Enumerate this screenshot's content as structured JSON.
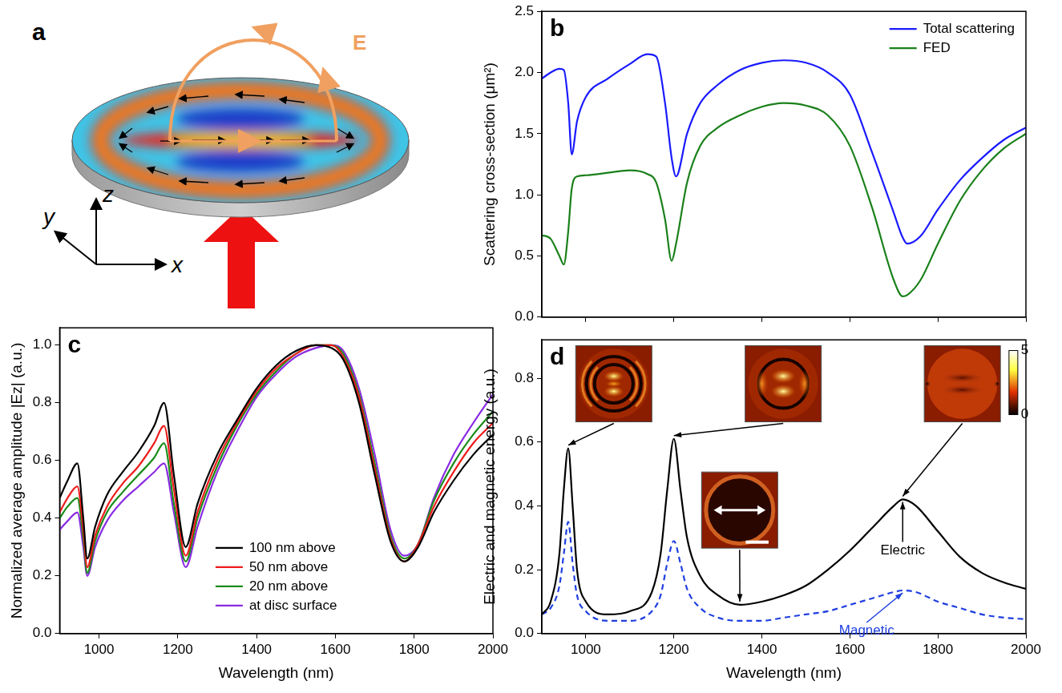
{
  "panel_a": {
    "panel": "a",
    "field_label": "E",
    "axis_labels": [
      "x",
      "y",
      "z"
    ]
  },
  "chart_data": [
    {
      "type": "line",
      "panel": "b",
      "y_label": "Scattering cross-section (μm²)",
      "x": [
        900,
        920,
        940,
        950,
        960,
        968,
        980,
        1000,
        1050,
        1100,
        1140,
        1160,
        1180,
        1195,
        1205,
        1230,
        1260,
        1300,
        1350,
        1400,
        1450,
        1500,
        1550,
        1600,
        1650,
        1700,
        1720,
        1730,
        1760,
        1800,
        1850,
        1900,
        1950,
        2000
      ],
      "series": [
        {
          "name": "Total scattering",
          "color": "#1a1aff",
          "line_style": "solid",
          "values": [
            1.95,
            2.0,
            2.03,
            2.02,
            1.75,
            1.33,
            1.6,
            1.8,
            1.95,
            2.07,
            2.15,
            2.13,
            1.75,
            1.3,
            1.15,
            1.5,
            1.75,
            1.9,
            2.02,
            2.08,
            2.1,
            2.08,
            2.0,
            1.82,
            1.35,
            0.85,
            0.65,
            0.6,
            0.66,
            0.88,
            1.12,
            1.3,
            1.45,
            1.55
          ]
        },
        {
          "name": "FED",
          "color": "#1a801a",
          "line_style": "solid",
          "values": [
            0.67,
            0.64,
            0.5,
            0.43,
            0.7,
            1.05,
            1.15,
            1.16,
            1.18,
            1.2,
            1.17,
            1.1,
            0.8,
            0.46,
            0.6,
            1.1,
            1.4,
            1.55,
            1.65,
            1.72,
            1.75,
            1.73,
            1.65,
            1.4,
            0.9,
            0.3,
            0.17,
            0.18,
            0.3,
            0.6,
            0.95,
            1.2,
            1.38,
            1.5
          ]
        }
      ],
      "xlim": [
        900,
        2000
      ],
      "xticks": [
        1000,
        1200,
        1400,
        1600,
        1800,
        2000
      ],
      "ylim": [
        0,
        2.5
      ],
      "yticks": [
        {
          "value": 0,
          "label": "0.0"
        },
        0.5,
        {
          "value": 1,
          "label": "1.0"
        },
        1.5,
        {
          "value": 2,
          "label": "2.0"
        },
        2.5
      ],
      "grid": false,
      "legend": "upper right",
      "tick_labels": "y"
    },
    {
      "type": "line",
      "panel": "c",
      "x_label": "Wavelength (nm)",
      "y_label": "Normalized average amplitude |Ez| (a.u.)",
      "x": [
        900,
        920,
        945,
        960,
        970,
        990,
        1020,
        1060,
        1100,
        1140,
        1165,
        1190,
        1220,
        1250,
        1300,
        1350,
        1400,
        1450,
        1500,
        1550,
        1590,
        1620,
        1660,
        1700,
        1740,
        1775,
        1810,
        1850,
        1900,
        1950,
        2000
      ],
      "series": [
        {
          "name": "100 nm above",
          "color": "#000000",
          "line_style": "solid",
          "values": [
            0.47,
            0.53,
            0.59,
            0.4,
            0.26,
            0.37,
            0.48,
            0.56,
            0.63,
            0.72,
            0.8,
            0.55,
            0.3,
            0.45,
            0.62,
            0.74,
            0.85,
            0.93,
            0.98,
            1.0,
            0.99,
            0.95,
            0.8,
            0.55,
            0.32,
            0.25,
            0.3,
            0.42,
            0.53,
            0.62,
            0.69
          ]
        },
        {
          "name": "50 nm above",
          "color": "#ee1c1c",
          "line_style": "solid",
          "values": [
            0.42,
            0.47,
            0.51,
            0.36,
            0.23,
            0.34,
            0.44,
            0.52,
            0.58,
            0.66,
            0.72,
            0.5,
            0.27,
            0.42,
            0.6,
            0.73,
            0.84,
            0.92,
            0.97,
            1.0,
            1.0,
            0.96,
            0.82,
            0.57,
            0.33,
            0.25,
            0.31,
            0.44,
            0.56,
            0.66,
            0.73
          ]
        },
        {
          "name": "20 nm above",
          "color": "#1a8c1a",
          "line_style": "solid",
          "values": [
            0.4,
            0.44,
            0.47,
            0.33,
            0.21,
            0.32,
            0.42,
            0.49,
            0.55,
            0.61,
            0.66,
            0.45,
            0.25,
            0.4,
            0.58,
            0.72,
            0.83,
            0.91,
            0.97,
            1.0,
            1.0,
            0.97,
            0.83,
            0.59,
            0.34,
            0.26,
            0.31,
            0.46,
            0.59,
            0.69,
            0.77
          ]
        },
        {
          "name": "at disc surface",
          "color": "#8a2be2",
          "line_style": "solid",
          "values": [
            0.36,
            0.39,
            0.42,
            0.3,
            0.2,
            0.3,
            0.39,
            0.46,
            0.51,
            0.56,
            0.59,
            0.42,
            0.23,
            0.37,
            0.56,
            0.7,
            0.82,
            0.9,
            0.96,
            0.99,
            1.0,
            0.98,
            0.85,
            0.62,
            0.36,
            0.27,
            0.31,
            0.47,
            0.62,
            0.73,
            0.83
          ]
        }
      ],
      "xlim": [
        900,
        2000
      ],
      "xticks": [
        1000,
        1200,
        1400,
        1600,
        1800,
        2000
      ],
      "ylim": [
        0,
        1.06
      ],
      "yticks": [
        {
          "value": 0,
          "label": "0.0"
        },
        0.2,
        0.4,
        0.6,
        0.8,
        {
          "value": 1,
          "label": "1.0"
        }
      ],
      "grid": false,
      "legend": "lower center"
    },
    {
      "type": "line",
      "panel": "d",
      "x_label": "Wavelength (nm)",
      "y_label": "Electric and magnetic energy (a.u.)",
      "x": [
        900,
        920,
        940,
        950,
        960,
        970,
        980,
        1000,
        1050,
        1100,
        1150,
        1170,
        1185,
        1200,
        1215,
        1230,
        1260,
        1300,
        1350,
        1400,
        1450,
        1500,
        1550,
        1600,
        1650,
        1700,
        1720,
        1750,
        1800,
        1850,
        1900,
        1950,
        2000
      ],
      "series": [
        {
          "name": "Electric",
          "color": "#000000",
          "line_style": "solid",
          "values": [
            0.06,
            0.1,
            0.25,
            0.45,
            0.58,
            0.4,
            0.2,
            0.1,
            0.06,
            0.07,
            0.13,
            0.25,
            0.45,
            0.61,
            0.45,
            0.3,
            0.18,
            0.12,
            0.09,
            0.1,
            0.12,
            0.15,
            0.2,
            0.26,
            0.33,
            0.4,
            0.42,
            0.4,
            0.32,
            0.24,
            0.19,
            0.16,
            0.14
          ]
        },
        {
          "name": "Magnetic",
          "color": "#1f3fe0",
          "line_style": "dashed",
          "values": [
            0.06,
            0.08,
            0.15,
            0.25,
            0.35,
            0.22,
            0.12,
            0.07,
            0.04,
            0.04,
            0.07,
            0.12,
            0.22,
            0.29,
            0.22,
            0.14,
            0.08,
            0.05,
            0.04,
            0.04,
            0.05,
            0.06,
            0.07,
            0.09,
            0.11,
            0.13,
            0.135,
            0.13,
            0.1,
            0.08,
            0.06,
            0.05,
            0.045
          ]
        }
      ],
      "xlim": [
        900,
        2000
      ],
      "xticks": [
        1000,
        1200,
        1400,
        1600,
        1800,
        2000
      ],
      "ylim": [
        0,
        0.92
      ],
      "yticks": [
        {
          "value": 0,
          "label": "0.0"
        },
        0.2,
        0.4,
        0.6,
        0.8
      ],
      "grid": false,
      "annotations": [
        {
          "text": "Electric",
          "color": "#000000",
          "points_to": [
            1720,
            0.42
          ]
        },
        {
          "text": "Magnetic",
          "color": "#1f3fe0",
          "points_to": [
            1720,
            0.135
          ]
        }
      ],
      "insets": [
        {
          "points_to": [
            960,
            0.58
          ]
        },
        {
          "points_to": [
            1200,
            0.61
          ]
        },
        {
          "points_to": [
            1720,
            0.42
          ]
        },
        {
          "points_to": [
            1350,
            0.09
          ]
        }
      ],
      "color_bar": {
        "range": [
          0,
          5
        ],
        "ticks": [
          0,
          5
        ]
      }
    }
  ]
}
